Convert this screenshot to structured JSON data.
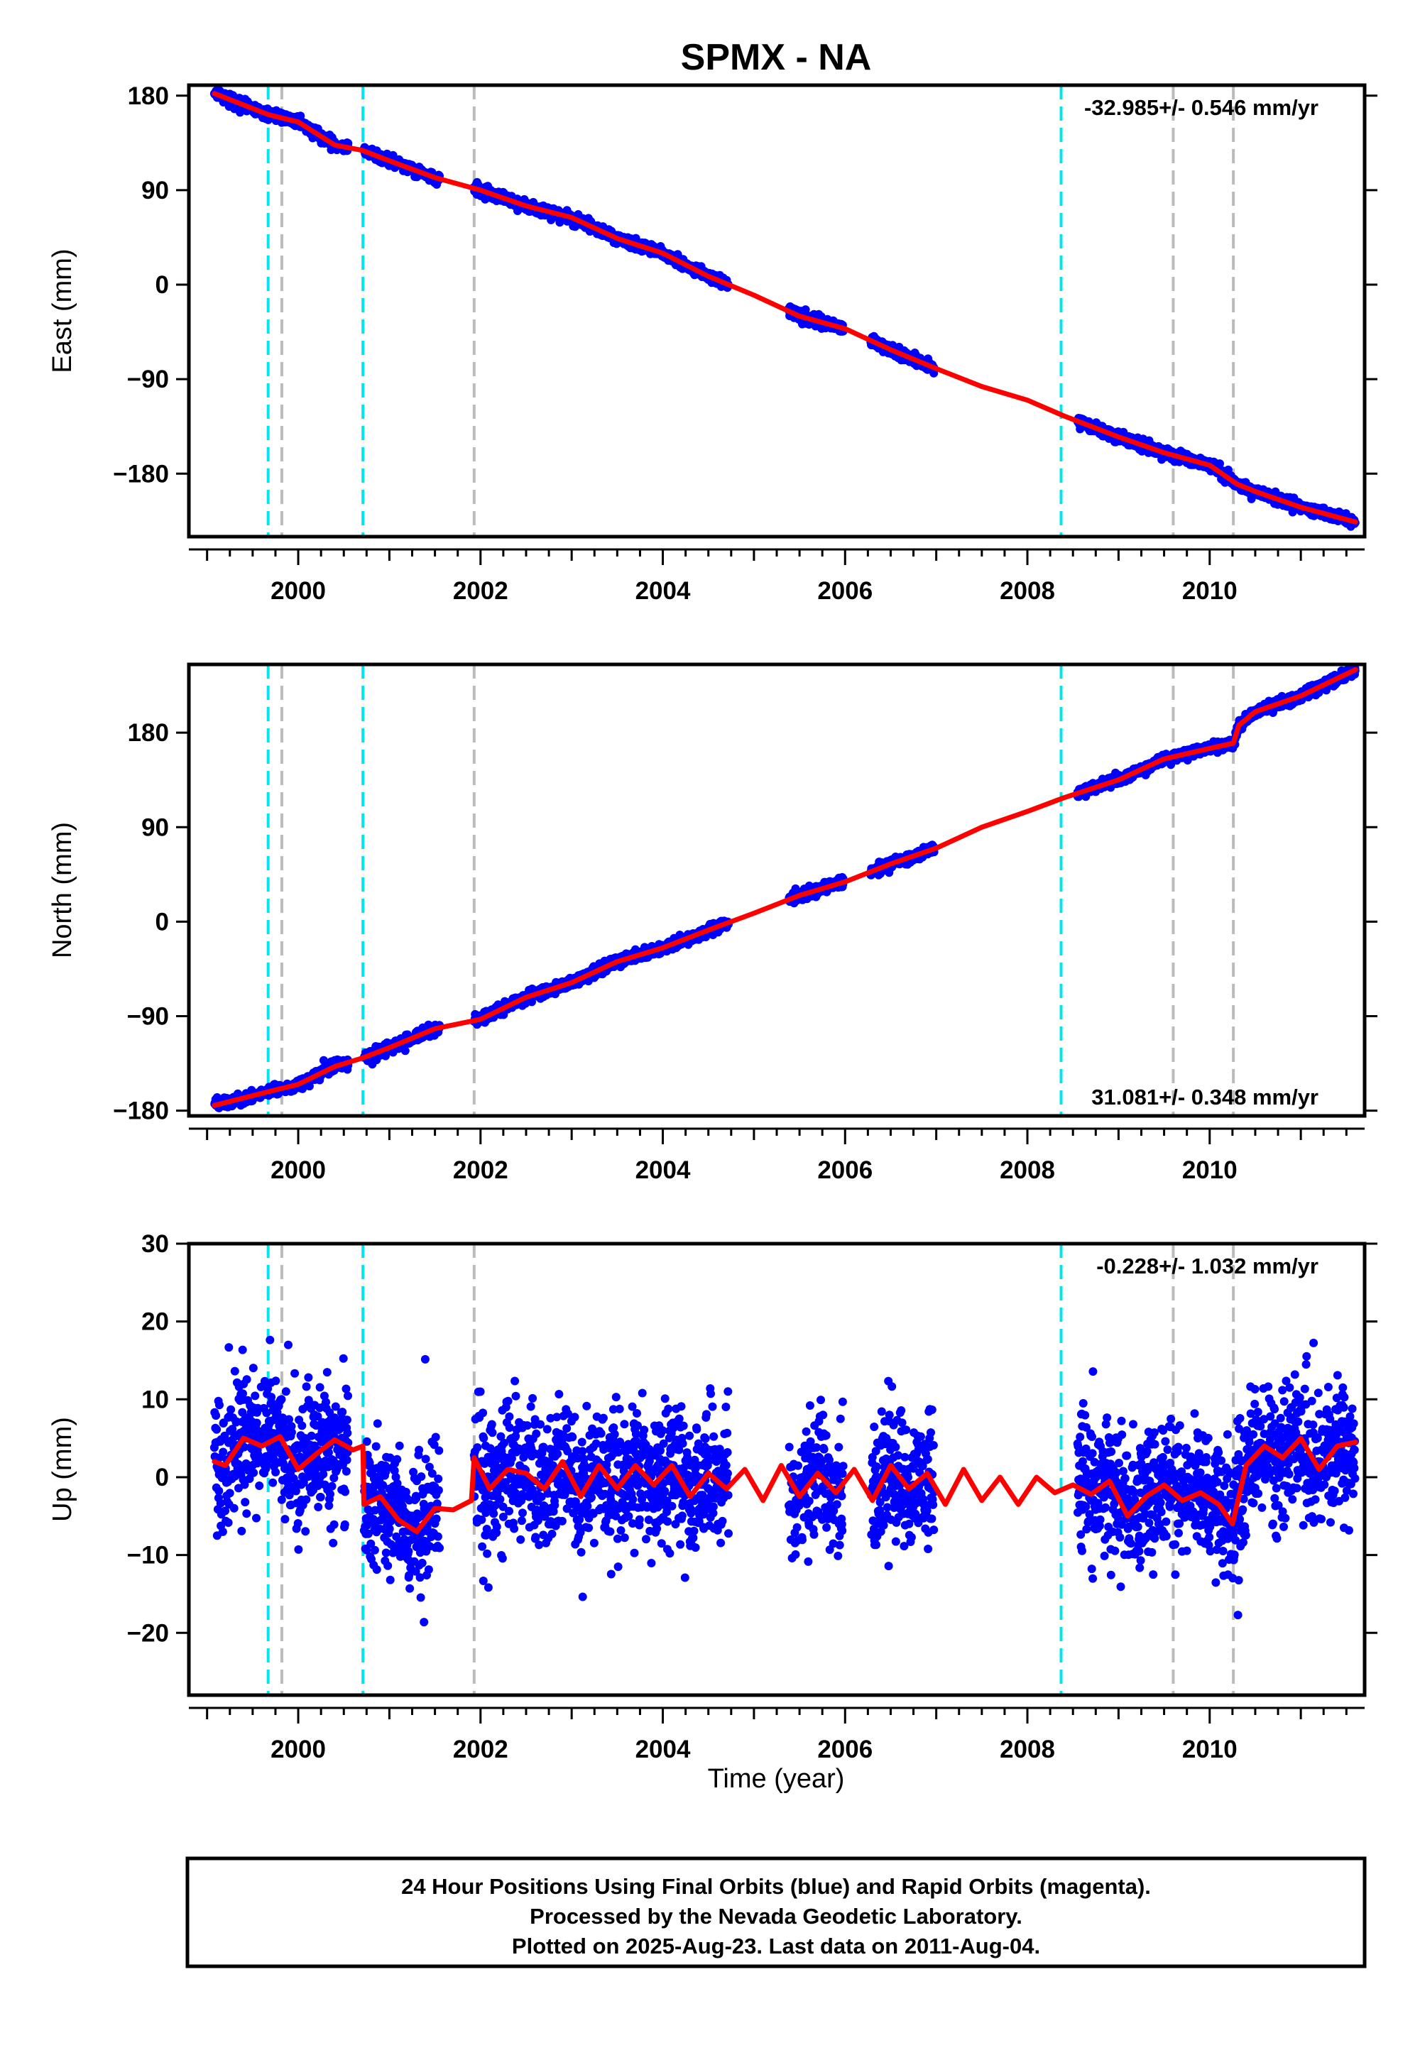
{
  "chart_data": {
    "type": "scatter",
    "title": "SPMX - NA",
    "xlabel": "Time (year)",
    "xlim": [
      1998.8,
      2011.7
    ],
    "x_ticks": [
      2000,
      2002,
      2004,
      2006,
      2008,
      2010
    ],
    "x_tick_labels": [
      "2000",
      "2002",
      "2004",
      "2006",
      "2008",
      "2010"
    ],
    "colors": {
      "data": "#0000ff",
      "model": "#ff0000",
      "cyan_line": "#00e5ee",
      "gray_line": "#bbbbbb"
    },
    "cyan_lines": [
      1999.67,
      2000.71,
      2008.37
    ],
    "gray_lines": [
      1999.82,
      2001.93,
      2009.6,
      2010.26
    ],
    "data_gaps": [
      [
        2000.55,
        2000.72
      ],
      [
        2001.55,
        2001.93
      ],
      [
        2004.72,
        2005.38
      ],
      [
        2005.98,
        2006.28
      ],
      [
        2006.98,
        2008.55
      ]
    ],
    "data_span": [
      1999.08,
      2011.6
    ],
    "panels": [
      {
        "id": "east",
        "ylabel": "East (mm)",
        "ylim": [
          -240,
          190
        ],
        "y_ticks": [
          180,
          90,
          0,
          -90,
          -180
        ],
        "y_tick_labels": [
          "180",
          "90",
          "0",
          "−90",
          "−180"
        ],
        "rate_text": "-32.985+/- 0.546 mm/yr",
        "rate_position": "top-right",
        "model": [
          [
            1999.08,
            182
          ],
          [
            1999.67,
            162
          ],
          [
            2000.0,
            155
          ],
          [
            2000.4,
            133
          ],
          [
            2000.7,
            128
          ],
          [
            2001.0,
            118
          ],
          [
            2001.5,
            102
          ],
          [
            2002.0,
            90
          ],
          [
            2002.5,
            75
          ],
          [
            2003.0,
            64
          ],
          [
            2003.5,
            44
          ],
          [
            2004.0,
            30
          ],
          [
            2004.5,
            8
          ],
          [
            2005.0,
            -10
          ],
          [
            2005.5,
            -30
          ],
          [
            2006.0,
            -42
          ],
          [
            2006.5,
            -62
          ],
          [
            2007.0,
            -80
          ],
          [
            2007.5,
            -97
          ],
          [
            2008.0,
            -110
          ],
          [
            2008.4,
            -125
          ],
          [
            2009.0,
            -145
          ],
          [
            2009.5,
            -160
          ],
          [
            2010.0,
            -172
          ],
          [
            2010.3,
            -190
          ],
          [
            2010.5,
            -197
          ],
          [
            2011.0,
            -212
          ],
          [
            2011.6,
            -226
          ]
        ],
        "scatter_sd": 2.4
      },
      {
        "id": "north",
        "ylabel": "North (mm)",
        "ylim": [
          -185,
          245
        ],
        "y_ticks": [
          180,
          90,
          0,
          -90,
          -180
        ],
        "y_tick_labels": [
          "180",
          "90",
          "0",
          "−90",
          "−180"
        ],
        "rate_text": "31.081+/- 0.348 mm/yr",
        "rate_position": "bottom-right",
        "model": [
          [
            1999.08,
            -175
          ],
          [
            1999.67,
            -162
          ],
          [
            2000.0,
            -155
          ],
          [
            2000.4,
            -138
          ],
          [
            2000.7,
            -130
          ],
          [
            2001.0,
            -120
          ],
          [
            2001.5,
            -102
          ],
          [
            2002.0,
            -93
          ],
          [
            2002.5,
            -72
          ],
          [
            2003.0,
            -58
          ],
          [
            2003.5,
            -38
          ],
          [
            2004.0,
            -25
          ],
          [
            2004.5,
            -8
          ],
          [
            2005.0,
            8
          ],
          [
            2005.5,
            25
          ],
          [
            2006.0,
            38
          ],
          [
            2006.5,
            55
          ],
          [
            2007.0,
            70
          ],
          [
            2007.5,
            90
          ],
          [
            2008.0,
            105
          ],
          [
            2008.4,
            118
          ],
          [
            2009.0,
            135
          ],
          [
            2009.5,
            155
          ],
          [
            2010.0,
            165
          ],
          [
            2010.26,
            170
          ],
          [
            2010.32,
            187
          ],
          [
            2010.5,
            200
          ],
          [
            2011.0,
            215
          ],
          [
            2011.6,
            240
          ]
        ],
        "scatter_sd": 2.4
      },
      {
        "id": "up",
        "ylabel": "Up (mm)",
        "ylim": [
          -28,
          30
        ],
        "y_ticks": [
          30,
          20,
          10,
          0,
          -10,
          -20
        ],
        "y_tick_labels": [
          "30",
          "20",
          "10",
          "0",
          "−10",
          "−20"
        ],
        "rate_text": "-0.228+/- 1.032 mm/yr",
        "rate_position": "top-right",
        "model": [
          [
            1999.08,
            2
          ],
          [
            1999.2,
            1.5
          ],
          [
            1999.4,
            5
          ],
          [
            1999.6,
            4
          ],
          [
            1999.8,
            5.2
          ],
          [
            2000.0,
            1
          ],
          [
            2000.2,
            3
          ],
          [
            2000.4,
            4.8
          ],
          [
            2000.6,
            3.5
          ],
          [
            2000.71,
            4
          ],
          [
            2000.72,
            -3.5
          ],
          [
            2000.9,
            -2.5
          ],
          [
            2001.1,
            -5.5
          ],
          [
            2001.3,
            -7
          ],
          [
            2001.5,
            -4
          ],
          [
            2001.7,
            -4.2
          ],
          [
            2001.9,
            -3
          ],
          [
            2001.93,
            2.5
          ],
          [
            2002.1,
            -1.5
          ],
          [
            2002.3,
            1
          ],
          [
            2002.5,
            0.5
          ],
          [
            2002.7,
            -1.5
          ],
          [
            2002.9,
            2
          ],
          [
            2003.1,
            -2.5
          ],
          [
            2003.3,
            1.5
          ],
          [
            2003.5,
            -1.5
          ],
          [
            2003.7,
            1.5
          ],
          [
            2003.9,
            -1
          ],
          [
            2004.1,
            1.5
          ],
          [
            2004.3,
            -2.5
          ],
          [
            2004.5,
            0.5
          ],
          [
            2004.7,
            -1.5
          ],
          [
            2004.9,
            1
          ],
          [
            2005.1,
            -3
          ],
          [
            2005.3,
            1.5
          ],
          [
            2005.5,
            -2.5
          ],
          [
            2005.7,
            0.5
          ],
          [
            2005.9,
            -2
          ],
          [
            2006.1,
            1
          ],
          [
            2006.3,
            -3
          ],
          [
            2006.5,
            1.5
          ],
          [
            2006.7,
            -1.5
          ],
          [
            2006.9,
            0.5
          ],
          [
            2007.1,
            -3.5
          ],
          [
            2007.3,
            1
          ],
          [
            2007.5,
            -3
          ],
          [
            2007.7,
            0
          ],
          [
            2007.9,
            -3.5
          ],
          [
            2008.1,
            0
          ],
          [
            2008.3,
            -2
          ],
          [
            2008.5,
            -1
          ],
          [
            2008.7,
            -2.2
          ],
          [
            2008.9,
            -0.5
          ],
          [
            2009.1,
            -5
          ],
          [
            2009.3,
            -2.5
          ],
          [
            2009.5,
            -1
          ],
          [
            2009.7,
            -3
          ],
          [
            2009.9,
            -2
          ],
          [
            2010.1,
            -3.5
          ],
          [
            2010.25,
            -6
          ],
          [
            2010.4,
            1.5
          ],
          [
            2010.6,
            4
          ],
          [
            2010.8,
            2.5
          ],
          [
            2011.0,
            5
          ],
          [
            2011.2,
            1
          ],
          [
            2011.4,
            4
          ],
          [
            2011.6,
            4.5
          ]
        ],
        "scatter_sd": 4.2
      }
    ]
  },
  "footer": {
    "line1": "24 Hour Positions Using Final Orbits (blue) and Rapid Orbits (magenta).",
    "line2": "Processed by the Nevada Geodetic Laboratory.",
    "line3": "Plotted on 2025-Aug-23. Last data on 2011-Aug-04."
  }
}
